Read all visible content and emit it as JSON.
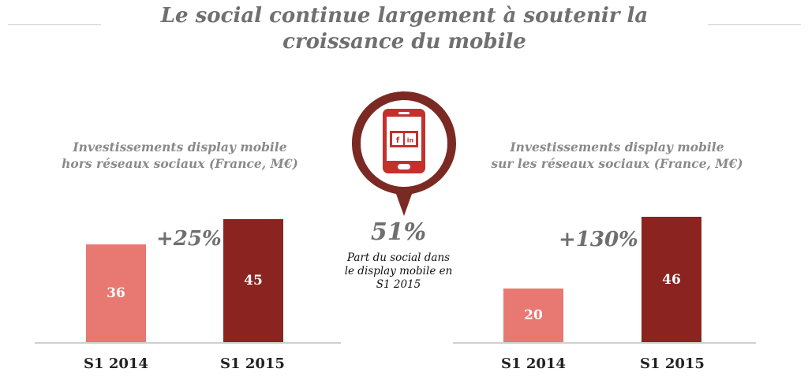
{
  "title": "Le social continue largement à soutenir la croissance du mobile",
  "colors": {
    "title": "#707070",
    "bar_2014": "#e87872",
    "bar_2015": "#8b2420",
    "pin": "#7a2a23",
    "phone": "#c4302b",
    "text_gray": "#6f6f6f"
  },
  "center": {
    "value": "51%",
    "caption_lines": [
      "Part du social dans",
      "le display mobile en",
      "S1 2015"
    ],
    "icon": "smartphone-social-icon",
    "social_icons": [
      "f",
      "in"
    ]
  },
  "chart_data": [
    {
      "type": "bar",
      "title": "Investissements display mobile hors réseaux sociaux (France, M€)",
      "title_lines": [
        "Investissements display mobile",
        "hors réseaux sociaux (France, M€)"
      ],
      "categories": [
        "S1 2014",
        "S1 2015"
      ],
      "values": [
        36,
        45
      ],
      "value_labels": [
        "36",
        "45"
      ],
      "growth": "+25%",
      "bar_colors": [
        "#e87872",
        "#8b2420"
      ],
      "grid": false
    },
    {
      "type": "bar",
      "title": "Investissements display mobile sur les réseaux sociaux (France, M€)",
      "title_lines": [
        "Investissements display mobile",
        "sur les réseaux sociaux (France, M€)"
      ],
      "categories": [
        "S1 2014",
        "S1 2015"
      ],
      "values": [
        20,
        46
      ],
      "value_labels": [
        "20",
        "46"
      ],
      "growth": "+130%",
      "bar_colors": [
        "#e87872",
        "#8b2420"
      ],
      "grid": false
    }
  ]
}
